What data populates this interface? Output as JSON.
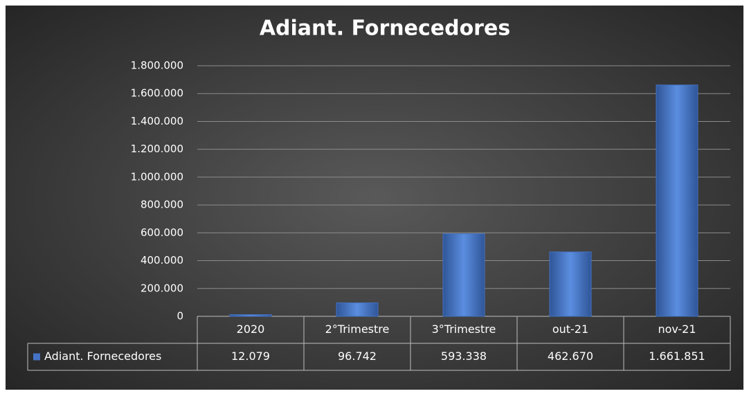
{
  "chart_data": {
    "type": "bar",
    "title": "Adiant. Fornecedores",
    "categories": [
      "2020",
      "2°Trimestre",
      "3°Trimestre",
      "out-21",
      "nov-21"
    ],
    "series": [
      {
        "name": "Adiant. Fornecedores",
        "color": "#4472c4",
        "values": [
          12079,
          96742,
          593338,
          462670,
          1661851
        ],
        "value_labels": [
          "12.079",
          "96.742",
          "593.338",
          "462.670",
          "1.661.851"
        ]
      }
    ],
    "ylim": [
      0,
      1800000
    ],
    "yticks": [
      0,
      {
        "value": 200000,
        "label": "200.000"
      },
      {
        "value": 400000,
        "label": "400.000"
      },
      {
        "value": 600000,
        "label": "600.000"
      },
      {
        "value": 800000,
        "label": "800.000"
      },
      {
        "value": 1000000,
        "label": "1.000.000"
      },
      {
        "value": 1200000,
        "label": "1.200.000"
      },
      {
        "value": 1400000,
        "label": "1.400.000"
      },
      {
        "value": 1600000,
        "label": "1.600.000"
      },
      {
        "value": 1800000,
        "label": "1.800.000"
      }
    ],
    "grid": true,
    "data_table": true
  }
}
